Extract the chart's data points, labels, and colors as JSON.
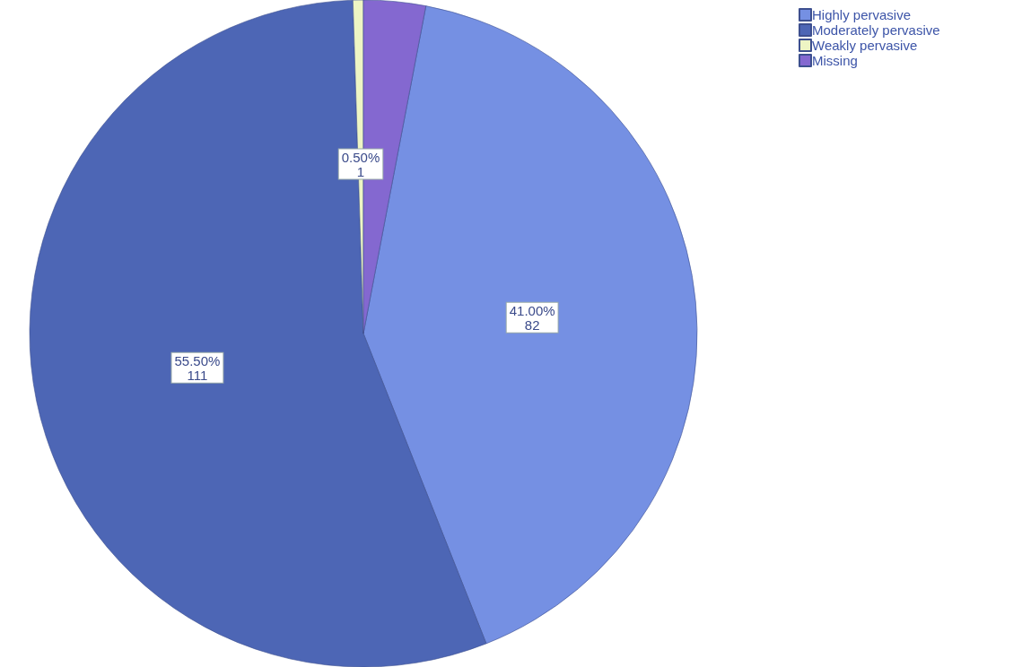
{
  "chart_data": {
    "type": "pie",
    "categories": [
      "Highly pervasive",
      "Moderately pervasive",
      "Weakly pervasive",
      "Missing"
    ],
    "values": [
      82,
      111,
      1,
      6
    ],
    "colors": [
      "#7590e3",
      "#4d66b5",
      "#eef5c4",
      "#8468d0"
    ],
    "value_labels": [
      "41.00%\n82",
      "55.50%\n111",
      "0.50%\n1",
      null
    ],
    "legend": "top right"
  }
}
